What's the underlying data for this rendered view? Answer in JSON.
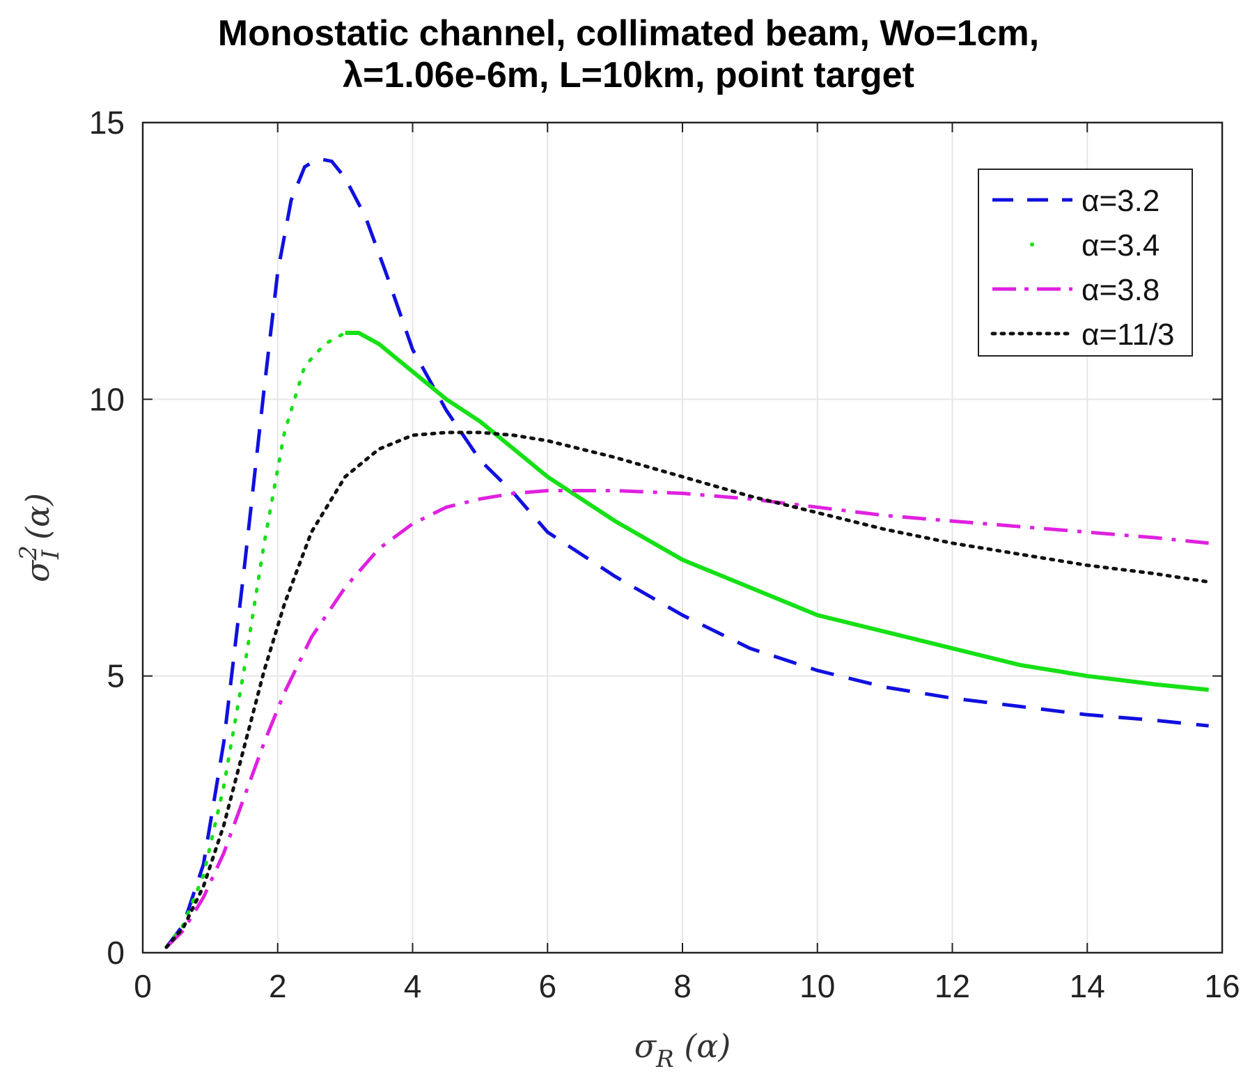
{
  "chart_data": {
    "type": "line",
    "title": "Monostatic channel, collimated beam, Wo=1cm, λ=1.06e-6m, L=10km, point target",
    "title_line1": "Monostatic channel, collimated beam, Wo=1cm,",
    "title_line2": "λ=1.06e-6m, L=10km, point target",
    "xlabel": "σR (α)",
    "ylabel": "σI2 (α)",
    "xlim": [
      0,
      16
    ],
    "ylim": [
      0,
      15
    ],
    "xticks": [
      "0",
      "2",
      "4",
      "6",
      "8",
      "10",
      "12",
      "14",
      "16"
    ],
    "yticks": [
      "0",
      "5",
      "10",
      "15"
    ],
    "grid": true,
    "legend_position": "top-right",
    "series": [
      {
        "name": "α=3.2",
        "color": "#1010e0",
        "style": "dashed",
        "x": [
          0.35,
          0.6,
          0.9,
          1.2,
          1.5,
          1.8,
          2.0,
          2.2,
          2.4,
          2.6,
          2.8,
          3.0,
          3.3,
          3.6,
          4.0,
          4.5,
          5.0,
          5.5,
          6.0,
          7.0,
          8.0,
          9.0,
          10.0,
          11.0,
          12.0,
          13.0,
          14.0,
          15.0,
          15.8
        ],
        "y": [
          0.1,
          0.5,
          1.6,
          3.8,
          6.9,
          10.2,
          12.3,
          13.6,
          14.2,
          14.35,
          14.3,
          14.0,
          13.3,
          12.3,
          10.9,
          9.8,
          8.9,
          8.3,
          7.6,
          6.8,
          6.1,
          5.5,
          5.1,
          4.8,
          4.6,
          4.45,
          4.3,
          4.2,
          4.1
        ]
      },
      {
        "name": "α=3.4",
        "color": "#16e016",
        "style": "dotted-then-solid",
        "x": [
          0.35,
          0.6,
          0.9,
          1.2,
          1.5,
          1.8,
          2.1,
          2.4,
          2.7,
          3.0,
          3.2,
          3.5,
          4.0,
          4.5,
          5.0,
          5.5,
          6.0,
          7.0,
          8.0,
          9.0,
          10.0,
          11.0,
          12.0,
          13.0,
          14.0,
          15.0,
          15.8
        ],
        "y": [
          0.1,
          0.5,
          1.4,
          3.0,
          5.1,
          7.4,
          9.4,
          10.6,
          11.0,
          11.2,
          11.2,
          11.0,
          10.5,
          10.0,
          9.6,
          9.1,
          8.6,
          7.8,
          7.1,
          6.6,
          6.1,
          5.8,
          5.5,
          5.2,
          5.0,
          4.85,
          4.75
        ]
      },
      {
        "name": "α=3.8",
        "color": "#e020e0",
        "style": "dashdot",
        "x": [
          0.35,
          0.6,
          0.9,
          1.2,
          1.5,
          1.8,
          2.1,
          2.5,
          3.0,
          3.5,
          4.0,
          4.5,
          5.0,
          5.5,
          6.0,
          6.5,
          7.0,
          8.0,
          9.0,
          10.0,
          11.0,
          12.0,
          13.0,
          14.0,
          15.0,
          15.8
        ],
        "y": [
          0.1,
          0.4,
          1.0,
          1.8,
          2.8,
          3.8,
          4.7,
          5.7,
          6.6,
          7.3,
          7.75,
          8.05,
          8.2,
          8.3,
          8.35,
          8.35,
          8.35,
          8.3,
          8.2,
          8.05,
          7.9,
          7.8,
          7.7,
          7.6,
          7.5,
          7.4
        ]
      },
      {
        "name": "α=11/3",
        "color": "#111111",
        "style": "dotted",
        "x": [
          0.35,
          0.6,
          0.9,
          1.2,
          1.5,
          1.8,
          2.1,
          2.5,
          3.0,
          3.5,
          4.0,
          4.5,
          5.0,
          5.5,
          6.0,
          7.0,
          8.0,
          9.0,
          10.0,
          11.0,
          12.0,
          13.0,
          14.0,
          15.0,
          15.8
        ],
        "y": [
          0.1,
          0.45,
          1.2,
          2.3,
          3.7,
          5.1,
          6.3,
          7.6,
          8.6,
          9.1,
          9.35,
          9.4,
          9.4,
          9.35,
          9.25,
          8.95,
          8.6,
          8.25,
          7.95,
          7.65,
          7.4,
          7.2,
          7.0,
          6.85,
          6.7
        ]
      }
    ]
  }
}
